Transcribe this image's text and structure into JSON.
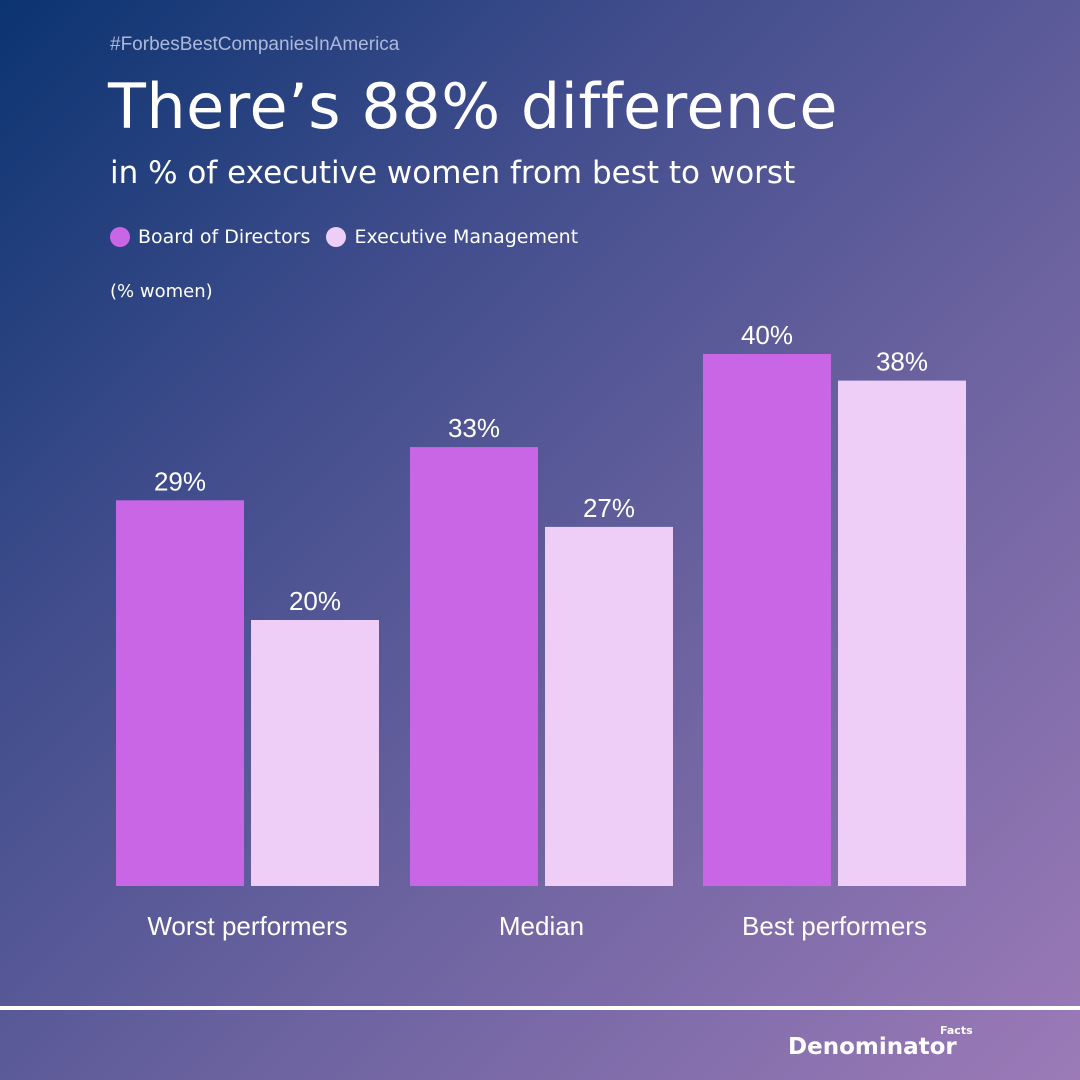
{
  "hashtag": "#ForbesBestCompaniesInAmerica",
  "brand": {
    "name": "Denominator",
    "superscript": "Facts"
  },
  "chart_data": {
    "type": "bar",
    "title": "There’s 88% difference",
    "subtitle": "in % of executive women from best to worst",
    "ylabel": "(% women)",
    "categories": [
      "Worst performers",
      "Median",
      "Best performers"
    ],
    "series": [
      {
        "name": "Board of Directors",
        "values": [
          29,
          33,
          40
        ],
        "labels": [
          "29%",
          "33%",
          "40%"
        ],
        "color": "#c966e6"
      },
      {
        "name": "Executive Management",
        "values": [
          20,
          27,
          38
        ],
        "labels": [
          "20%",
          "27%",
          "38%"
        ],
        "color": "#eecdf6"
      }
    ],
    "ylim": [
      0,
      40
    ],
    "grid": false,
    "legend_position": "top-left"
  }
}
